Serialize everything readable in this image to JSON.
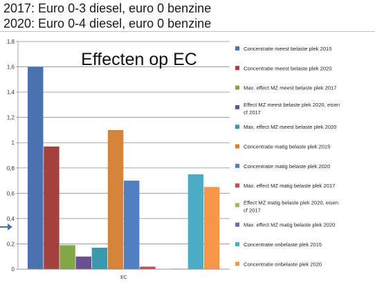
{
  "header": {
    "line1": "2017: Euro 0-3 diesel, euro 0 benzine",
    "line2": "2020: Euro 0-4 diesel, euro 0 benzine"
  },
  "chart_data": {
    "type": "bar",
    "title": "Effecten op EC",
    "categories": [
      "EC"
    ],
    "xlabel": "",
    "ylabel": "",
    "ylim": [
      0,
      1.8
    ],
    "yticks": [
      "0",
      "0,2",
      "0,4",
      "0,6",
      "0,8",
      "1",
      "1,2",
      "1,4",
      "1,6",
      "1,8"
    ],
    "grid": true,
    "legend_position": "right",
    "series": [
      {
        "name": "Concentratie meest belaste plek 2015",
        "values": [
          1.6
        ],
        "color": "#4a72b0"
      },
      {
        "name": "Concentratie meest belaste plek 2020",
        "values": [
          0.97
        ],
        "color": "#a4403d"
      },
      {
        "name": "Max. effect MZ meest belaste plek 2017",
        "values": [
          0.19
        ],
        "color": "#82a845"
      },
      {
        "name": "Effect MZ meest belaste plek 2020, eisen cf 2017",
        "values": [
          0.1
        ],
        "color": "#6b5090"
      },
      {
        "name": "Max. effect MZ meest belaste plek 2020",
        "values": [
          0.17
        ],
        "color": "#3a98ad"
      },
      {
        "name": "Concentratie matig belaste plek 2015",
        "values": [
          1.1
        ],
        "color": "#d6833a"
      },
      {
        "name": "Concentratie matig belaste plek 2020",
        "values": [
          0.7
        ],
        "color": "#4f7fc4"
      },
      {
        "name": "Max. effect MZ matig belaste plek 2017",
        "values": [
          0.02
        ],
        "color": "#c2504d"
      },
      {
        "name": "Effect MZ matig belaste plek 2020, eisen cf 2017",
        "values": [
          0.0
        ],
        "color": "#9bbb59"
      },
      {
        "name": "Max. effect MZ matig belaste plek 2020",
        "values": [
          0.003
        ],
        "color": "#8064a2"
      },
      {
        "name": "Concentratie onbelaste plek 2015",
        "values": [
          0.75
        ],
        "color": "#4bacc6"
      },
      {
        "name": "Concentratie onbelaste plek 2020",
        "values": [
          0.65
        ],
        "color": "#f79646"
      }
    ]
  }
}
